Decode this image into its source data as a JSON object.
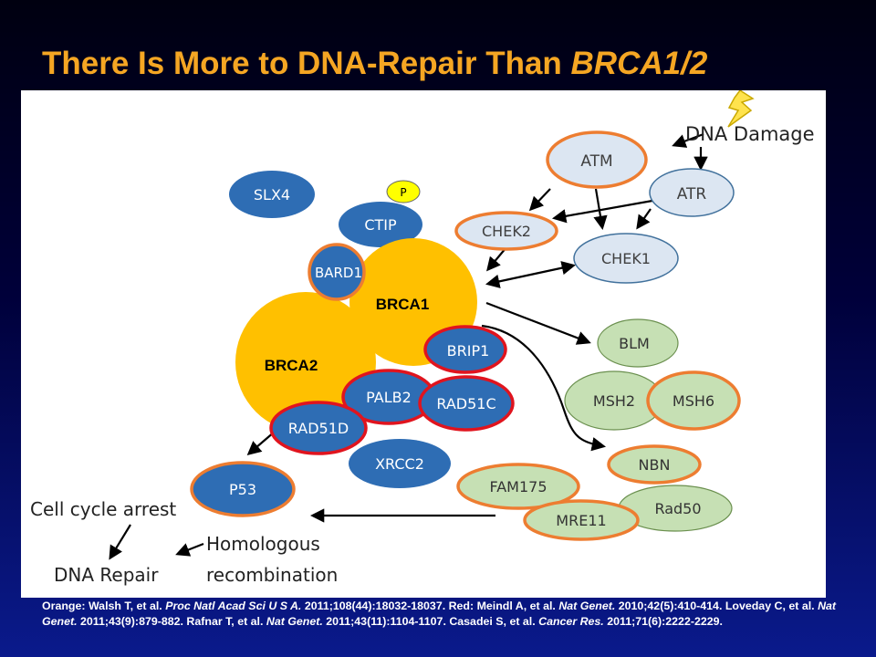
{
  "title": {
    "main": "There Is More to DNA-Repair Than ",
    "italic": "BRCA1/2"
  },
  "diagram": {
    "nodes": {
      "atm": "ATM",
      "atr": "ATR",
      "chek2": "CHEK2",
      "chek1": "CHEK1",
      "slx4": "SLX4",
      "ctip": "CTIP",
      "phospho": "P",
      "bard1": "BARD1",
      "brca1": "BRCA1",
      "brca2": "BRCA2",
      "brip1": "BRIP1",
      "palb2": "PALB2",
      "rad51c": "RAD51C",
      "rad51d": "RAD51D",
      "xrcc2": "XRCC2",
      "p53": "P53",
      "blm": "BLM",
      "msh2": "MSH2",
      "msh6": "MSH6",
      "nbn": "NBN",
      "fam175": "FAM175",
      "rad50": "Rad50",
      "mre11": "MRE11"
    },
    "labels": {
      "dna_damage": "DNA Damage",
      "cell_cycle_arrest": "Cell cycle arrest",
      "homologous_line1": "Homologous",
      "homologous_line2": "recombination",
      "dna_repair": "DNA Repair"
    }
  },
  "colors": {
    "title": "#F5A623",
    "dark_blue_node": "#2E6DB4",
    "light_blue_node": "#DCE6F2",
    "green_node": "#C6E0B4",
    "brca_yellow": "#FFC000",
    "orange_ring": "#ED7D31",
    "red_ring": "#E0141E"
  },
  "references": {
    "orange_label": "Orange: Walsh T, et al. ",
    "walsh_journal": "Proc Natl Acad Sci U S A.",
    "walsh_rest": " 2011;108(44):18032-18037.  Red: Meindl A, et al. ",
    "meindl_journal": "Nat Genet.",
    "meindl_rest": " 2010;42(5):410-414. Loveday C, et al. ",
    "loveday_journal": "Nat Genet.",
    "loveday_rest": " 2011;43(9):879-882. Rafnar T, et al.  ",
    "rafnar_journal": "Nat Genet.",
    "rafnar_rest": " 2011;43(11):1104-1107. Casadei S, et al.  ",
    "casadei_journal": "Cancer Res.",
    "casadei_rest": " 2011;71(6):2222-2229."
  }
}
